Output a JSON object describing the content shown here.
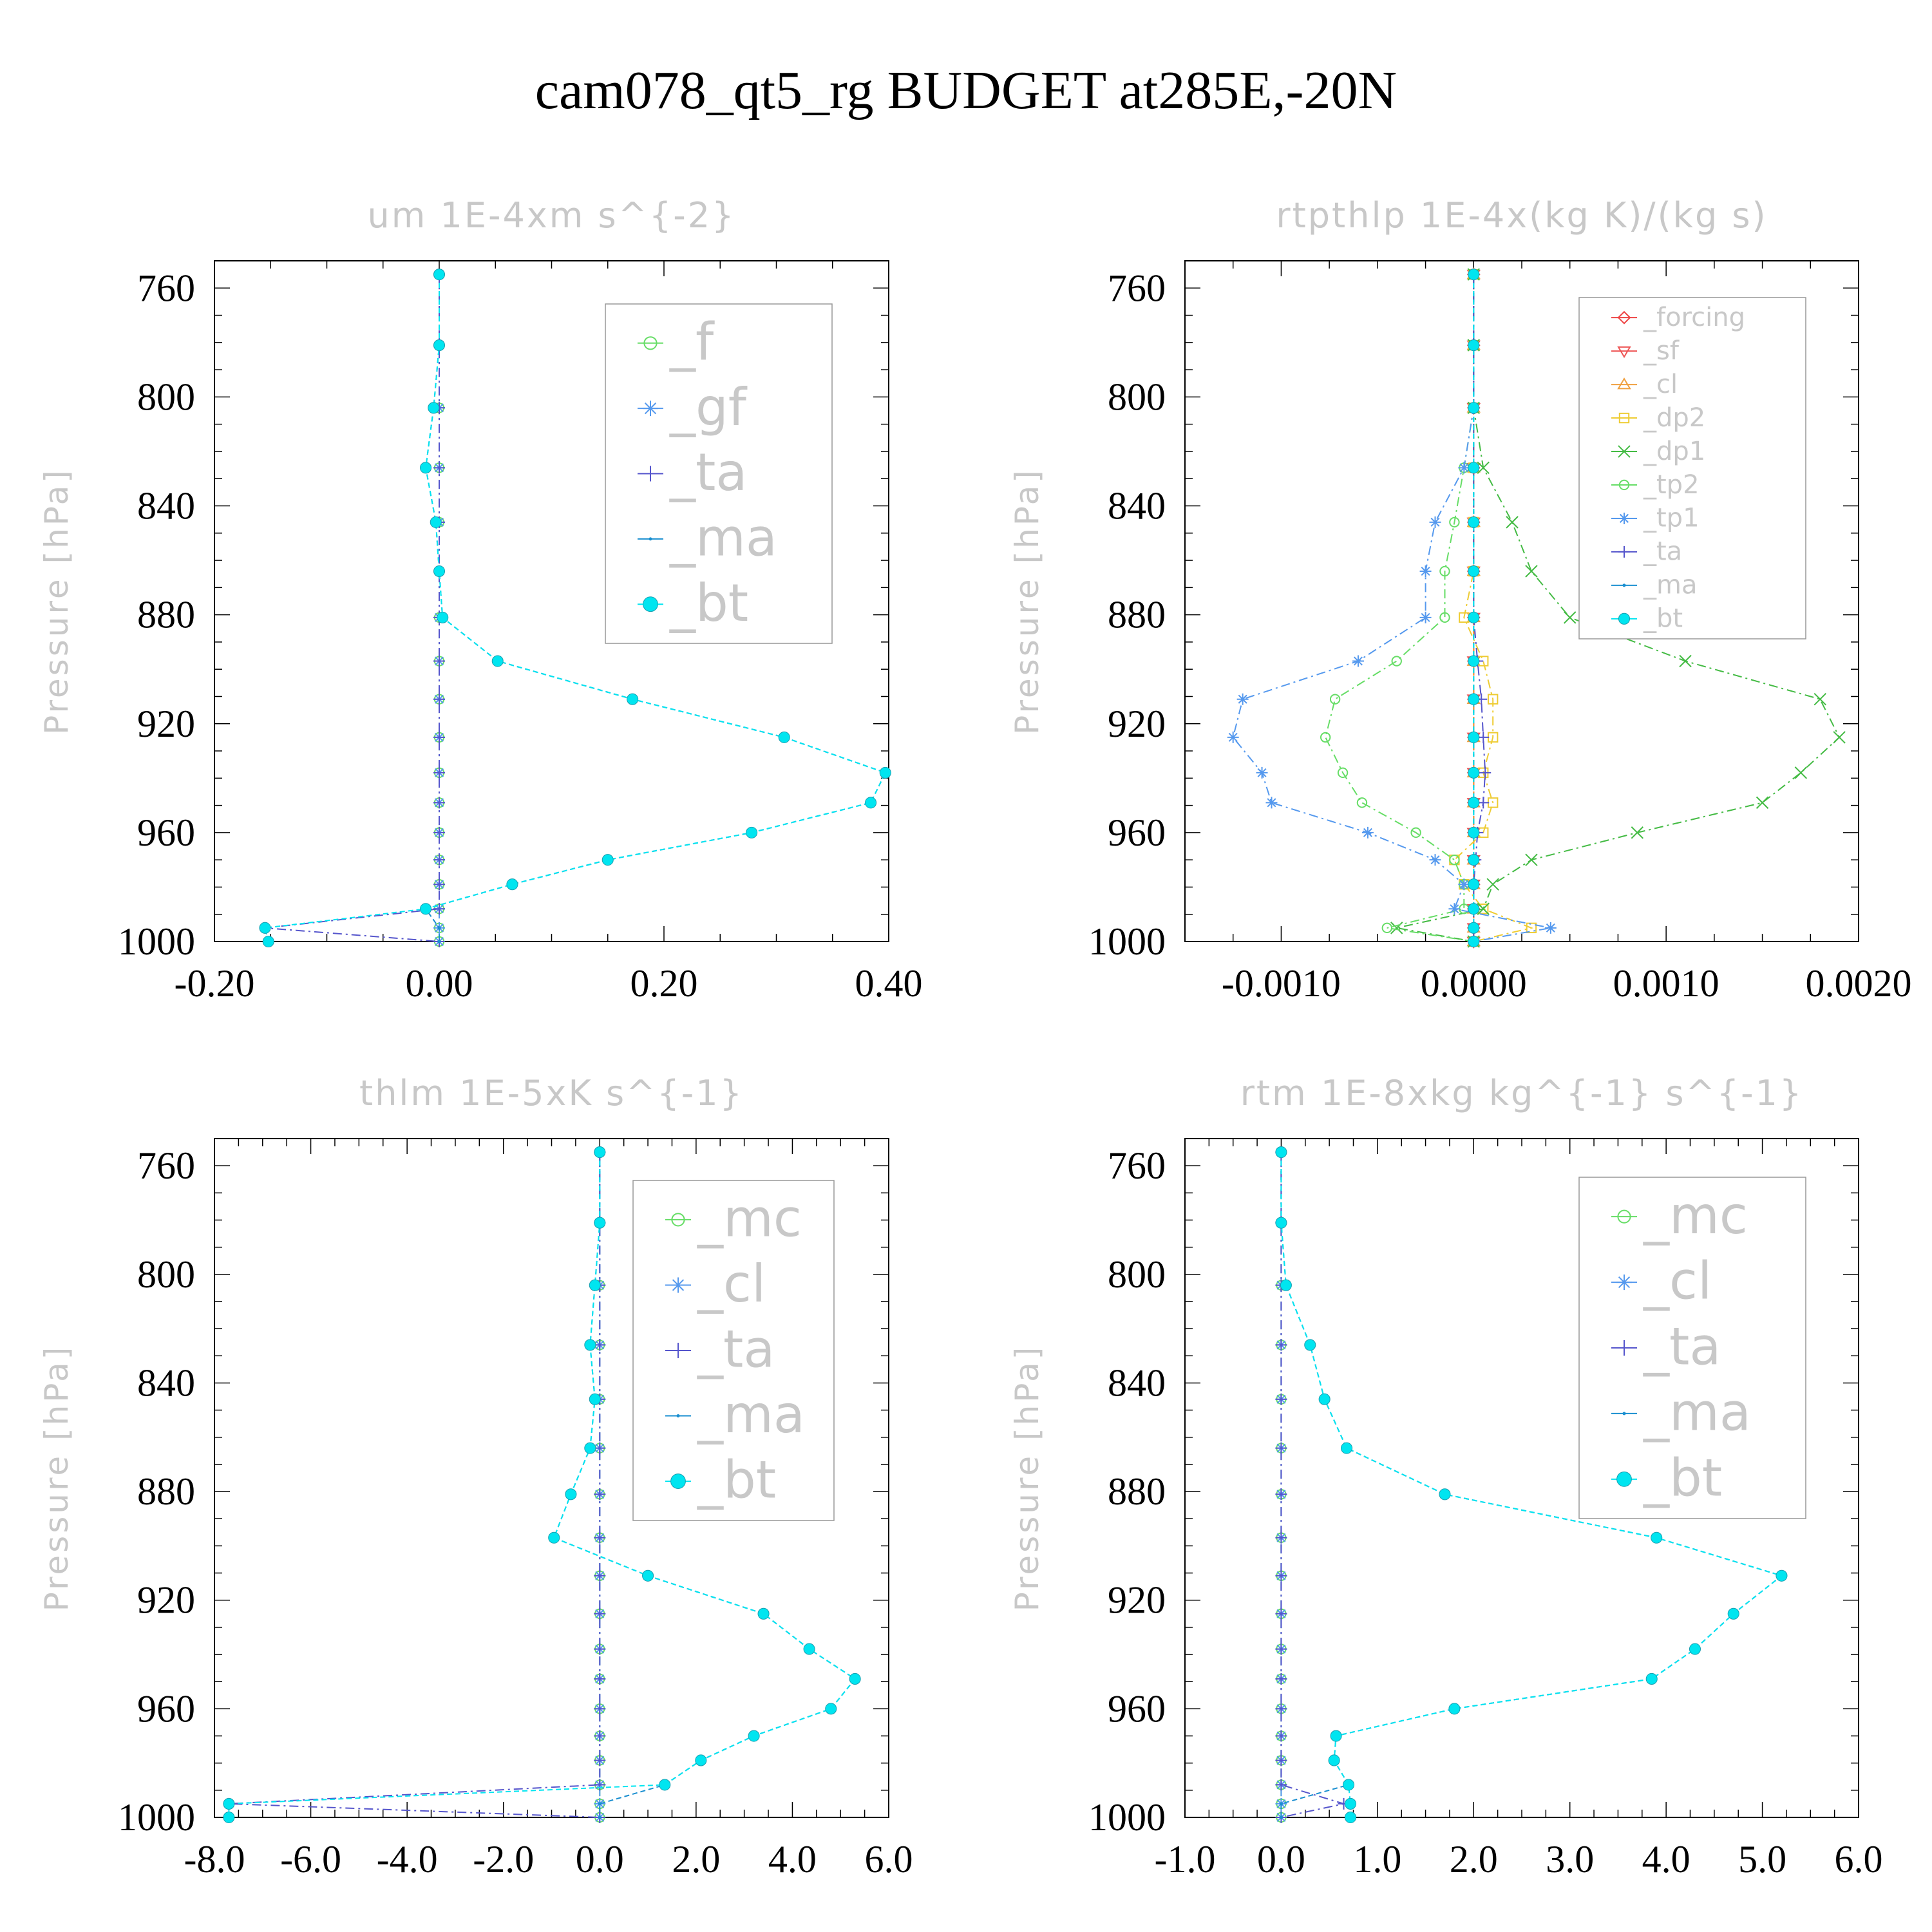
{
  "figure": {
    "title": "cam078_qt5_rg  BUDGET at285E,-20N",
    "y_label": "Pressure [hPa]"
  },
  "chart_data": [
    {
      "type": "line",
      "title": "um  1E-4xm s^{-2}",
      "xlabel": "",
      "ylabel": "Pressure [hPa]",
      "xlim": [
        -0.2,
        0.4
      ],
      "ylim": [
        1000,
        750
      ],
      "y_inverted": true,
      "grid": false,
      "legend": "top-right",
      "xticks": [
        "-0.20",
        "0.00",
        "0.20",
        "0.40"
      ],
      "yticks": [
        "760",
        "800",
        "840",
        "880",
        "920",
        "960",
        "1000"
      ],
      "pressure": [
        755,
        781,
        804,
        826,
        846,
        864,
        881,
        897,
        911,
        925,
        938,
        949,
        960,
        970,
        979,
        988,
        995,
        1000
      ],
      "series": [
        {
          "name": "_f",
          "color": "#66dd66",
          "marker": "circle-open",
          "values": [
            0,
            0,
            0,
            0,
            0,
            0,
            0,
            0,
            0,
            0,
            0,
            0,
            0,
            0,
            0,
            0,
            0,
            0
          ]
        },
        {
          "name": "_gf",
          "color": "#5599ee",
          "marker": "asterisk",
          "values": [
            0,
            0,
            0,
            0,
            0,
            0,
            0,
            0,
            0,
            0,
            0,
            0,
            0,
            0,
            0,
            0,
            0,
            0
          ]
        },
        {
          "name": "_ta",
          "color": "#5555cc",
          "marker": "plus",
          "values": [
            0,
            0,
            0,
            0,
            0,
            0,
            0,
            0,
            0,
            0,
            0,
            0,
            0,
            0,
            0,
            0,
            -0.155,
            0
          ]
        },
        {
          "name": "_ma",
          "color": "#1a8fd0",
          "marker": "dot",
          "values": [
            0,
            0,
            -0.005,
            -0.012,
            -0.003,
            0,
            0.003,
            0.052,
            0.172,
            0.307,
            0.397,
            0.384,
            0.278,
            0.15,
            0.065,
            -0.012,
            0.0,
            0.0
          ]
        },
        {
          "name": "_bt",
          "color": "#00e5f0",
          "marker": "filled-circle",
          "values": [
            0,
            0,
            -0.005,
            -0.012,
            -0.003,
            0,
            0.003,
            0.052,
            0.172,
            0.307,
            0.397,
            0.384,
            0.278,
            0.15,
            0.065,
            -0.012,
            -0.155,
            -0.152
          ]
        }
      ]
    },
    {
      "type": "line",
      "title": "rtpthlp  1E-4x(kg K)/(kg s)",
      "xlabel": "",
      "ylabel": "Pressure [hPa]",
      "xlim": [
        -0.0015,
        0.002
      ],
      "ylim": [
        1000,
        750
      ],
      "y_inverted": true,
      "grid": false,
      "legend": "top-right",
      "xticks": [
        "-0.0010",
        "0.0000",
        "0.0010",
        "0.0020"
      ],
      "yticks": [
        "760",
        "800",
        "840",
        "880",
        "920",
        "960",
        "1000"
      ],
      "pressure": [
        755,
        781,
        804,
        826,
        846,
        864,
        881,
        897,
        911,
        925,
        938,
        949,
        960,
        970,
        979,
        988,
        995,
        1000
      ],
      "series": [
        {
          "name": "_forcing",
          "color": "#ee4444",
          "marker": "diamond-open",
          "values": [
            0,
            0,
            0,
            0,
            0,
            0,
            0,
            0,
            0,
            0,
            0,
            0,
            0,
            0,
            0,
            0,
            0,
            0
          ]
        },
        {
          "name": "_sf",
          "color": "#ee5555",
          "marker": "triangle-down-open",
          "values": [
            0,
            0,
            0,
            0,
            0,
            0,
            0,
            0,
            0,
            0,
            0,
            0,
            0,
            0,
            0,
            0,
            0,
            0
          ]
        },
        {
          "name": "_cl",
          "color": "#f0a040",
          "marker": "triangle-up-open",
          "values": [
            0,
            0,
            0,
            0,
            0,
            0,
            0,
            0,
            0,
            0,
            0,
            0,
            0,
            0,
            0,
            0,
            0,
            0
          ]
        },
        {
          "name": "_dp2",
          "color": "#eecc33",
          "marker": "square-open",
          "values": [
            0,
            0,
            0,
            0,
            0,
            0,
            -5e-05,
            5e-05,
            0.0001,
            0.0001,
            5e-05,
            0.0001,
            5e-05,
            -0.0001,
            -5e-05,
            5e-05,
            0.0003,
            0
          ]
        },
        {
          "name": "_dp1",
          "color": "#44bb44",
          "marker": "x",
          "values": [
            0,
            0,
            0,
            5e-05,
            0.0002,
            0.0003,
            0.0005,
            0.0011,
            0.0018,
            0.0019,
            0.0017,
            0.0015,
            0.00085,
            0.0003,
            0.0001,
            5e-05,
            -0.0004,
            0
          ]
        },
        {
          "name": "_tp2",
          "color": "#66dd66",
          "marker": "circle-open",
          "values": [
            0,
            0,
            0,
            -5e-05,
            -0.0001,
            -0.00015,
            -0.00015,
            -0.0004,
            -0.00072,
            -0.00077,
            -0.00068,
            -0.00058,
            -0.0003,
            -0.0001,
            -5e-05,
            -5e-05,
            -0.00045,
            0
          ]
        },
        {
          "name": "_tp1",
          "color": "#5599ee",
          "marker": "asterisk",
          "values": [
            0,
            0,
            0,
            -5e-05,
            -0.0002,
            -0.00025,
            -0.00025,
            -0.0006,
            -0.0012,
            -0.00125,
            -0.0011,
            -0.00105,
            -0.00055,
            -0.0002,
            -5e-05,
            -0.0001,
            0.0004,
            0
          ]
        },
        {
          "name": "_ta",
          "color": "#5555cc",
          "marker": "plus",
          "values": [
            0,
            0,
            0,
            0,
            0,
            0,
            0,
            2e-05,
            4e-05,
            5e-05,
            6e-05,
            5e-05,
            2e-05,
            1e-05,
            0,
            0,
            0,
            0
          ]
        },
        {
          "name": "_ma",
          "color": "#1a8fd0",
          "marker": "dot",
          "values": [
            0,
            0,
            0,
            0,
            0,
            0,
            0,
            0,
            0,
            0,
            0,
            0,
            0,
            0,
            0,
            0,
            0,
            0
          ]
        },
        {
          "name": "_bt",
          "color": "#00e5f0",
          "marker": "filled-circle",
          "values": [
            0,
            0,
            0,
            0,
            0,
            0,
            0,
            0,
            0,
            0,
            0,
            0,
            0,
            0,
            0,
            0,
            0,
            0
          ]
        }
      ]
    },
    {
      "type": "line",
      "title": "thlm  1E-5xK s^{-1}",
      "xlabel": "",
      "ylabel": "Pressure [hPa]",
      "xlim": [
        -8.0,
        6.0
      ],
      "ylim": [
        1000,
        750
      ],
      "y_inverted": true,
      "grid": false,
      "legend": "top-right",
      "xticks": [
        "-8.0",
        "-6.0",
        "-4.0",
        "-2.0",
        "0.0",
        "2.0",
        "4.0",
        "6.0"
      ],
      "yticks": [
        "760",
        "800",
        "840",
        "880",
        "920",
        "960",
        "1000"
      ],
      "pressure": [
        755,
        781,
        804,
        826,
        846,
        864,
        881,
        897,
        911,
        925,
        938,
        949,
        960,
        970,
        979,
        988,
        995,
        1000
      ],
      "series": [
        {
          "name": "_mc",
          "color": "#66dd66",
          "marker": "circle-open",
          "values": [
            0,
            0,
            0,
            0,
            0,
            0,
            0,
            0,
            0,
            0,
            0,
            0,
            0,
            0,
            0,
            0,
            0,
            0
          ]
        },
        {
          "name": "_cl",
          "color": "#5599ee",
          "marker": "asterisk",
          "values": [
            0,
            0,
            0,
            0,
            0,
            0,
            0,
            0,
            0,
            0,
            0,
            0,
            0,
            0,
            0,
            0,
            0,
            0
          ]
        },
        {
          "name": "_ta",
          "color": "#5555cc",
          "marker": "plus",
          "values": [
            0,
            0,
            0,
            0,
            0,
            0,
            0,
            0,
            0,
            0,
            0,
            0,
            0,
            0,
            0,
            0,
            -7.7,
            0
          ]
        },
        {
          "name": "_ma",
          "color": "#1a8fd0",
          "marker": "dot",
          "values": [
            0,
            0,
            -0.1,
            -0.2,
            -0.1,
            -0.2,
            -0.6,
            -0.95,
            1.0,
            3.4,
            4.35,
            5.3,
            4.8,
            3.2,
            2.1,
            1.35,
            0.0,
            0.0
          ]
        },
        {
          "name": "_bt",
          "color": "#00e5f0",
          "marker": "filled-circle",
          "values": [
            0,
            0,
            -0.1,
            -0.2,
            -0.1,
            -0.2,
            -0.6,
            -0.95,
            1.0,
            3.4,
            4.35,
            5.3,
            4.8,
            3.2,
            2.1,
            1.35,
            -7.7,
            -7.7
          ]
        }
      ]
    },
    {
      "type": "line",
      "title": "rtm  1E-8xkg kg^{-1} s^{-1}",
      "xlabel": "",
      "ylabel": "Pressure [hPa]",
      "xlim": [
        -1.0,
        6.0
      ],
      "ylim": [
        1000,
        750
      ],
      "y_inverted": true,
      "grid": false,
      "legend": "top-right",
      "xticks": [
        "-1.0",
        "0.0",
        "1.0",
        "2.0",
        "3.0",
        "4.0",
        "5.0",
        "6.0"
      ],
      "yticks": [
        "760",
        "800",
        "840",
        "880",
        "920",
        "960",
        "1000"
      ],
      "pressure": [
        755,
        781,
        804,
        826,
        846,
        864,
        881,
        897,
        911,
        925,
        938,
        949,
        960,
        970,
        979,
        988,
        995,
        1000
      ],
      "series": [
        {
          "name": "_mc",
          "color": "#66dd66",
          "marker": "circle-open",
          "values": [
            0,
            0,
            0,
            0,
            0,
            0,
            0,
            0,
            0,
            0,
            0,
            0,
            0,
            0,
            0,
            0,
            0,
            0
          ]
        },
        {
          "name": "_cl",
          "color": "#5599ee",
          "marker": "asterisk",
          "values": [
            0,
            0,
            0,
            0,
            0,
            0,
            0,
            0,
            0,
            0,
            0,
            0,
            0,
            0,
            0,
            0,
            0,
            0
          ]
        },
        {
          "name": "_ta",
          "color": "#5555cc",
          "marker": "plus",
          "values": [
            0,
            0,
            0,
            0,
            0,
            0,
            0,
            0,
            0,
            0,
            0,
            0,
            0,
            0,
            0,
            0,
            0.65,
            0
          ]
        },
        {
          "name": "_ma",
          "color": "#1a8fd0",
          "marker": "dot",
          "values": [
            0,
            0,
            0.05,
            0.3,
            0.45,
            0.68,
            1.7,
            3.9,
            5.2,
            4.7,
            4.3,
            3.85,
            1.8,
            0.57,
            0.55,
            0.7,
            0.0,
            0.0
          ]
        },
        {
          "name": "_bt",
          "color": "#00e5f0",
          "marker": "filled-circle",
          "values": [
            0,
            0,
            0.05,
            0.3,
            0.45,
            0.68,
            1.7,
            3.9,
            5.2,
            4.7,
            4.3,
            3.85,
            1.8,
            0.57,
            0.55,
            0.7,
            0.72,
            0.72
          ]
        }
      ]
    }
  ]
}
